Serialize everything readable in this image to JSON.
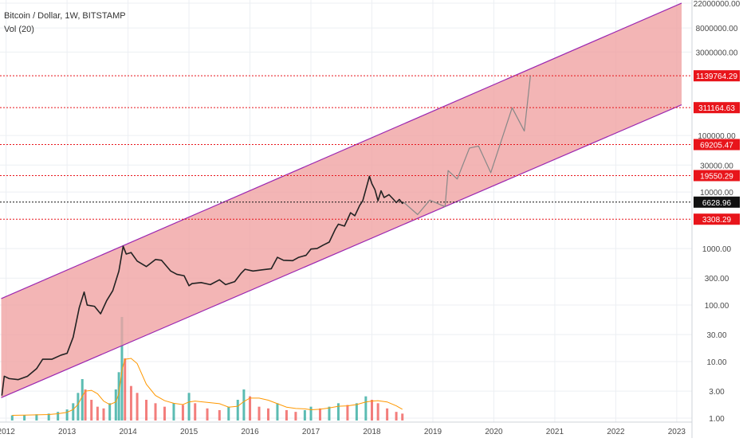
{
  "header": {
    "symbol_title": "Bitcoin / Dollar, 1W, BITSTAMP",
    "volume_indicator": "Vol (20)"
  },
  "chart_data": {
    "type": "line",
    "yscale": "log",
    "ylim": [
      0.85,
      25000000
    ],
    "xlim": [
      2011.9,
      2023.25
    ],
    "x_ticks": [
      2012,
      2013,
      2014,
      2015,
      2016,
      2017,
      2018,
      2019,
      2020,
      2021,
      2022,
      2023
    ],
    "x_tick_labels": [
      "2012",
      "2013",
      "2014",
      "2015",
      "2016",
      "2017",
      "2018",
      "2019",
      "2020",
      "2021",
      "2022",
      "2023"
    ],
    "y_ticks": [
      {
        "value": 1,
        "label": "1.00"
      },
      {
        "value": 3,
        "label": "3.00"
      },
      {
        "value": 10,
        "label": "10.00"
      },
      {
        "value": 30,
        "label": "30.00"
      },
      {
        "value": 100,
        "label": "100.00"
      },
      {
        "value": 300,
        "label": "300.00"
      },
      {
        "value": 1000,
        "label": "1000.00"
      },
      {
        "value": 10000,
        "label": "10000.00"
      },
      {
        "value": 30000,
        "label": "30000.00"
      },
      {
        "value": 100000,
        "label": "100000.00"
      },
      {
        "value": 3000000,
        "label": "3000000.00"
      },
      {
        "value": 8000000,
        "label": "8000000.00"
      },
      {
        "value": 22000000,
        "label": "22000000.00"
      }
    ],
    "price_levels": [
      {
        "value": 1139764.29,
        "label": "1139764.29",
        "color": "#e8151b"
      },
      {
        "value": 311164.63,
        "label": "311164.63",
        "color": "#e8151b"
      },
      {
        "value": 69205.47,
        "label": "69205.47",
        "color": "#e8151b"
      },
      {
        "value": 19550.29,
        "label": "19550.29",
        "color": "#e8151b"
      },
      {
        "value": 3308.29,
        "label": "3308.29",
        "color": "#e8151b"
      }
    ],
    "last_price": {
      "value": 6628.96,
      "label": "6628.96",
      "color": "#111111"
    },
    "channel": {
      "fill": "#f0a3a3",
      "stroke": "#9c27b0",
      "upper": [
        [
          2011.92,
          130
        ],
        [
          2023.08,
          22000000
        ]
      ],
      "lower": [
        [
          2011.92,
          2.3
        ],
        [
          2023.08,
          350000
        ]
      ]
    },
    "series": [
      {
        "color": "#222222",
        "values": [
          [
            2011.93,
            2.5
          ],
          [
            2011.97,
            5.5
          ],
          [
            2012.05,
            5
          ],
          [
            2012.2,
            4.8
          ],
          [
            2012.35,
            5.5
          ],
          [
            2012.5,
            7.5
          ],
          [
            2012.6,
            11
          ],
          [
            2012.75,
            11
          ],
          [
            2012.9,
            13
          ],
          [
            2013.0,
            14
          ],
          [
            2013.1,
            27
          ],
          [
            2013.2,
            90
          ],
          [
            2013.28,
            170
          ],
          [
            2013.33,
            100
          ],
          [
            2013.45,
            95
          ],
          [
            2013.55,
            70
          ],
          [
            2013.65,
            120
          ],
          [
            2013.75,
            180
          ],
          [
            2013.85,
            400
          ],
          [
            2013.92,
            1100
          ],
          [
            2013.97,
            800
          ],
          [
            2014.05,
            850
          ],
          [
            2014.15,
            600
          ],
          [
            2014.3,
            480
          ],
          [
            2014.45,
            640
          ],
          [
            2014.55,
            620
          ],
          [
            2014.7,
            400
          ],
          [
            2014.8,
            350
          ],
          [
            2014.92,
            330
          ],
          [
            2015.0,
            220
          ],
          [
            2015.05,
            240
          ],
          [
            2015.2,
            250
          ],
          [
            2015.35,
            230
          ],
          [
            2015.5,
            280
          ],
          [
            2015.6,
            230
          ],
          [
            2015.75,
            260
          ],
          [
            2015.85,
            360
          ],
          [
            2015.92,
            430
          ],
          [
            2016.05,
            400
          ],
          [
            2016.2,
            420
          ],
          [
            2016.35,
            440
          ],
          [
            2016.45,
            700
          ],
          [
            2016.55,
            620
          ],
          [
            2016.7,
            610
          ],
          [
            2016.8,
            700
          ],
          [
            2016.92,
            760
          ],
          [
            2017.0,
            980
          ],
          [
            2017.1,
            1000
          ],
          [
            2017.2,
            1150
          ],
          [
            2017.3,
            1300
          ],
          [
            2017.4,
            2200
          ],
          [
            2017.45,
            2700
          ],
          [
            2017.55,
            2500
          ],
          [
            2017.65,
            4300
          ],
          [
            2017.72,
            3800
          ],
          [
            2017.8,
            5800
          ],
          [
            2017.85,
            7000
          ],
          [
            2017.9,
            11000
          ],
          [
            2017.96,
            19000
          ],
          [
            2018.0,
            14000
          ],
          [
            2018.05,
            11000
          ],
          [
            2018.1,
            7000
          ],
          [
            2018.15,
            10500
          ],
          [
            2018.2,
            8000
          ],
          [
            2018.28,
            9000
          ],
          [
            2018.35,
            7500
          ],
          [
            2018.4,
            6500
          ],
          [
            2018.45,
            7400
          ],
          [
            2018.5,
            6300
          ],
          [
            2018.52,
            6600
          ]
        ]
      },
      {
        "color": "#888888",
        "values": [
          [
            2018.52,
            6600
          ],
          [
            2018.75,
            4000
          ],
          [
            2018.95,
            7200
          ],
          [
            2019.2,
            5500
          ],
          [
            2019.25,
            24000
          ],
          [
            2019.4,
            17000
          ],
          [
            2019.6,
            60000
          ],
          [
            2019.75,
            65000
          ],
          [
            2019.95,
            22000
          ],
          [
            2020.3,
            310000
          ],
          [
            2020.5,
            120000
          ],
          [
            2020.6,
            1140000
          ]
        ]
      }
    ],
    "volume": {
      "up_color": "#26a69a",
      "down_color": "#ef5350",
      "ma_color": "#ff9800",
      "bars": [
        {
          "x": 2012.1,
          "v": 1.5
        },
        {
          "x": 2012.3,
          "v": 1.6
        },
        {
          "x": 2012.5,
          "v": 1.8
        },
        {
          "x": 2012.7,
          "v": 2.0
        },
        {
          "x": 2012.85,
          "v": 2.5
        },
        {
          "x": 2013.0,
          "v": 3.2
        },
        {
          "x": 2013.1,
          "v": 5.0
        },
        {
          "x": 2013.18,
          "v": 8.0
        },
        {
          "x": 2013.25,
          "v": 12.0
        },
        {
          "x": 2013.3,
          "v": 9.0
        },
        {
          "x": 2013.4,
          "v": 6.0
        },
        {
          "x": 2013.5,
          "v": 4.0
        },
        {
          "x": 2013.6,
          "v": 3.5
        },
        {
          "x": 2013.7,
          "v": 5.0
        },
        {
          "x": 2013.8,
          "v": 9.0
        },
        {
          "x": 2013.85,
          "v": 14.0
        },
        {
          "x": 2013.9,
          "v": 30.0
        },
        {
          "x": 2013.95,
          "v": 18.0
        },
        {
          "x": 2014.05,
          "v": 10.0
        },
        {
          "x": 2014.15,
          "v": 8.0
        },
        {
          "x": 2014.3,
          "v": 6.0
        },
        {
          "x": 2014.45,
          "v": 5.0
        },
        {
          "x": 2014.6,
          "v": 4.0
        },
        {
          "x": 2014.75,
          "v": 5.0
        },
        {
          "x": 2014.9,
          "v": 4.5
        },
        {
          "x": 2015.0,
          "v": 8.0
        },
        {
          "x": 2015.1,
          "v": 5.0
        },
        {
          "x": 2015.3,
          "v": 3.5
        },
        {
          "x": 2015.5,
          "v": 3.0
        },
        {
          "x": 2015.65,
          "v": 4.0
        },
        {
          "x": 2015.8,
          "v": 6.0
        },
        {
          "x": 2015.9,
          "v": 9.0
        },
        {
          "x": 2016.0,
          "v": 7.0
        },
        {
          "x": 2016.15,
          "v": 4.0
        },
        {
          "x": 2016.3,
          "v": 3.5
        },
        {
          "x": 2016.45,
          "v": 5.0
        },
        {
          "x": 2016.6,
          "v": 3.0
        },
        {
          "x": 2016.75,
          "v": 2.5
        },
        {
          "x": 2016.9,
          "v": 3.0
        },
        {
          "x": 2017.0,
          "v": 4.0
        },
        {
          "x": 2017.15,
          "v": 3.5
        },
        {
          "x": 2017.3,
          "v": 4.0
        },
        {
          "x": 2017.45,
          "v": 5.0
        },
        {
          "x": 2017.6,
          "v": 4.5
        },
        {
          "x": 2017.75,
          "v": 5.0
        },
        {
          "x": 2017.9,
          "v": 7.0
        },
        {
          "x": 2018.0,
          "v": 6.0
        },
        {
          "x": 2018.1,
          "v": 5.0
        },
        {
          "x": 2018.25,
          "v": 3.5
        },
        {
          "x": 2018.4,
          "v": 2.5
        },
        {
          "x": 2018.5,
          "v": 2.0
        }
      ]
    }
  }
}
